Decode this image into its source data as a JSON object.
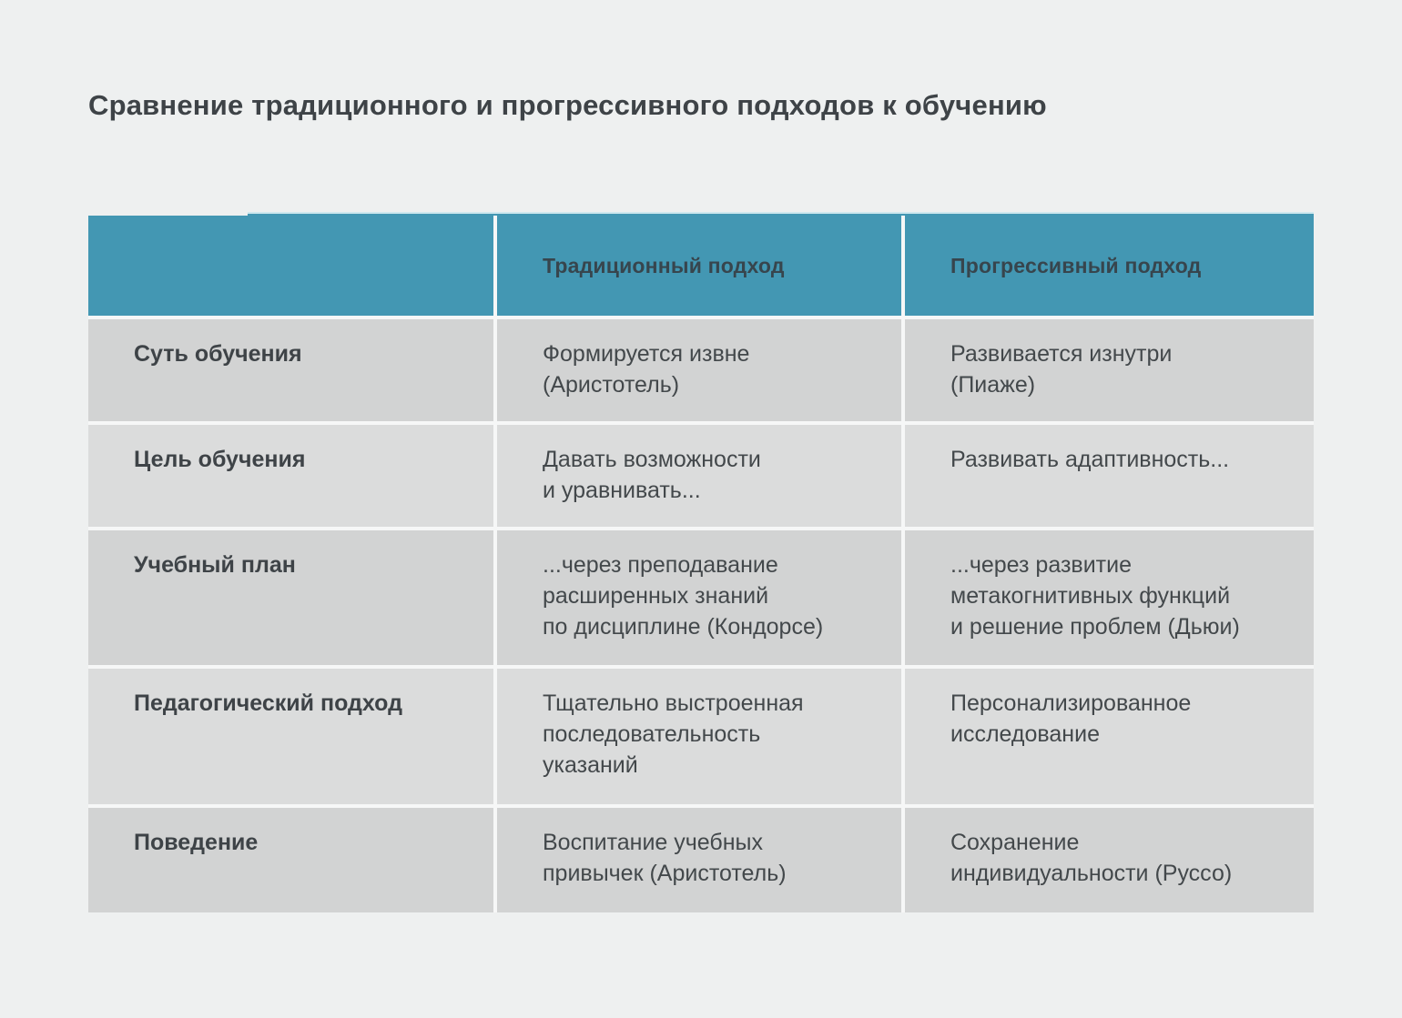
{
  "page": {
    "title": "Сравнение традиционного и прогрессивного подходов к обучению"
  },
  "colors": {
    "page_bg": "#eef0f0",
    "header_bg": "#4397b3",
    "header_text": "#37454d",
    "row_dark": "#d2d3d3",
    "row_light": "#dbdcdc",
    "body_text": "#43484b",
    "label_text": "#3e4347",
    "gap": "#f6f7f7",
    "strip_top": "#cfe8ef"
  },
  "table": {
    "columns": [
      "",
      "Традиционный подход",
      "Прогрессивный подход"
    ],
    "rows": [
      {
        "label": "Суть обучения",
        "traditional": "Формируется извне\n(Аристотель)",
        "progressive": "Развивается изнутри\n(Пиаже)"
      },
      {
        "label": "Цель обучения",
        "traditional": "Давать возможности\nи уравнивать...",
        "progressive": "Развивать адаптивность..."
      },
      {
        "label": "Учебный план",
        "traditional": "...через преподавание\nрасширенных знаний\nпо дисциплине (Кондорсе)",
        "progressive": "...через развитие\nметакогнитивных функций\nи решение проблем (Дьюи)"
      },
      {
        "label": "Педагогический подход",
        "traditional": "Тщательно выстроенная\nпоследовательность\nуказаний",
        "progressive": "Персонализированное\nисследование"
      },
      {
        "label": "Поведение",
        "traditional": "Воспитание учебных\nпривычек (Аристотель)",
        "progressive": "Сохранение\nиндивидуальности (Руссо)"
      }
    ]
  }
}
